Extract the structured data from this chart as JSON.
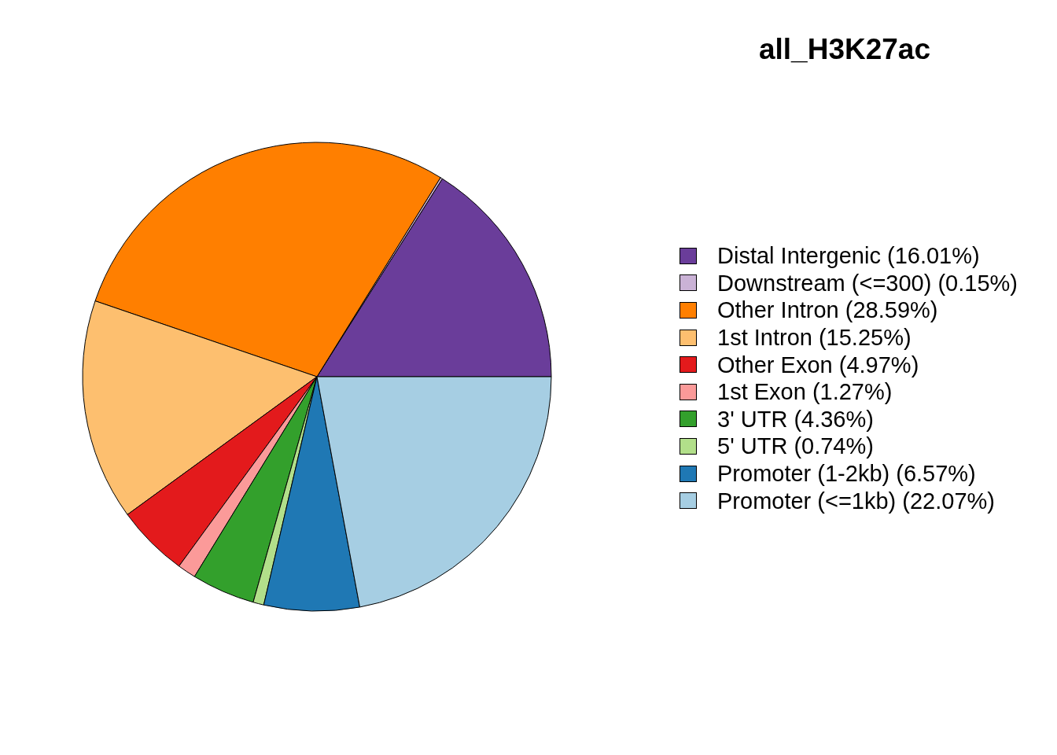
{
  "chart_data": {
    "type": "pie",
    "title": "all_H3K27ac",
    "categories": [
      "Distal Intergenic (16.01%)",
      "Downstream (<=300) (0.15%)",
      "Other Intron (28.59%)",
      "1st Intron (15.25%)",
      "Other Exon (4.97%)",
      "1st Exon (1.27%)",
      "3' UTR (4.36%)",
      "5' UTR (0.74%)",
      "Promoter (1-2kb) (6.57%)",
      "Promoter (<=1kb) (22.07%)"
    ],
    "values": [
      16.01,
      0.15,
      28.59,
      15.25,
      4.97,
      1.27,
      4.36,
      0.74,
      6.57,
      22.07
    ],
    "colors": [
      "#6a3d9a",
      "#cab2d6",
      "#ff7f00",
      "#fdbf6f",
      "#e31a1c",
      "#fb9a99",
      "#33a02c",
      "#b2df8a",
      "#1f78b4",
      "#a6cee3"
    ],
    "legend": "right"
  }
}
